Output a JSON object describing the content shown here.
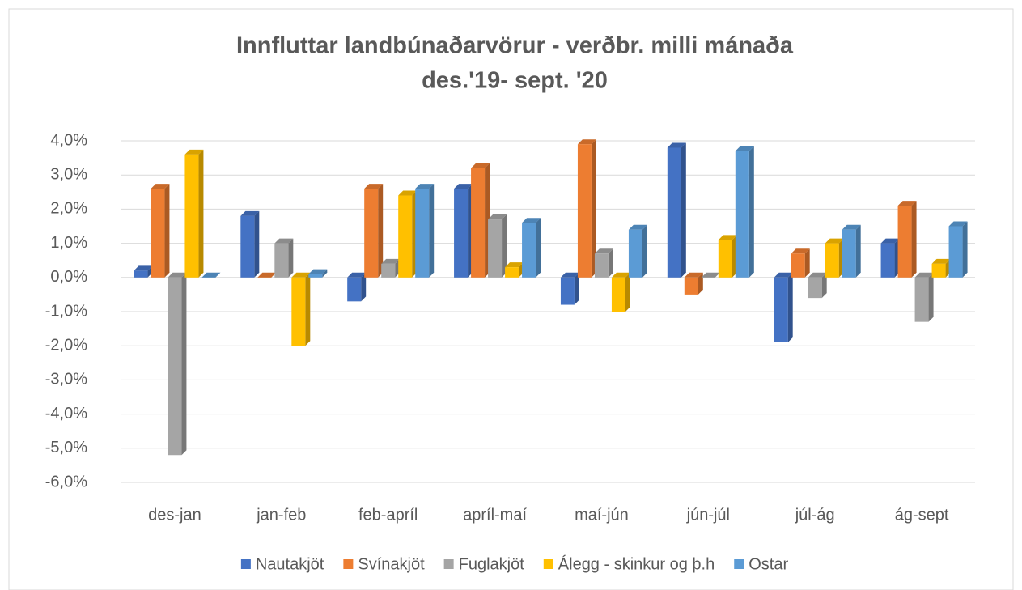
{
  "chart_data": {
    "type": "bar3d",
    "title": "Innfluttar landbúnaðarvörur - verðbr. milli mánaða",
    "subtitle": "des.'19- sept. '20",
    "categories": [
      "des-jan",
      "jan-feb",
      "feb-apríl",
      "apríl-maí",
      "maí-jún",
      "jún-júl",
      "júl-ág",
      "ág-sept"
    ],
    "series": [
      {
        "name": "Nautakjöt",
        "color": "#4472c4",
        "values": [
          0.2,
          1.8,
          -0.7,
          2.6,
          -0.8,
          3.8,
          -1.9,
          1.0
        ]
      },
      {
        "name": "Svínakjöt",
        "color": "#ed7d31",
        "values": [
          2.6,
          0.0,
          2.6,
          3.2,
          3.9,
          -0.5,
          0.7,
          2.1
        ]
      },
      {
        "name": "Fuglakjöt",
        "color": "#a5a5a5",
        "values": [
          -5.2,
          1.0,
          0.4,
          1.7,
          0.7,
          0.0,
          -0.6,
          -1.3
        ]
      },
      {
        "name": "Álegg - skinkur og þ.h",
        "color": "#ffc000",
        "values": [
          3.6,
          -2.0,
          2.4,
          0.3,
          -1.0,
          1.1,
          1.0,
          0.4
        ]
      },
      {
        "name": "Ostar",
        "color": "#5b9bd5",
        "values": [
          0.0,
          0.1,
          2.6,
          1.6,
          1.4,
          3.7,
          1.4,
          1.5
        ]
      }
    ],
    "ylim": [
      -6,
      4
    ],
    "yticks": [
      {
        "value": -6,
        "label": "-6,0%"
      },
      {
        "value": -5,
        "label": "-5,0%"
      },
      {
        "value": -4,
        "label": "-4,0%"
      },
      {
        "value": -3,
        "label": "-3,0%"
      },
      {
        "value": -2,
        "label": "-2,0%"
      },
      {
        "value": -1,
        "label": "-1,0%"
      },
      {
        "value": 0,
        "label": "0,0%"
      },
      {
        "value": 1,
        "label": "1,0%"
      },
      {
        "value": 2,
        "label": "2,0%"
      },
      {
        "value": 3,
        "label": "3,0%"
      },
      {
        "value": 4,
        "label": "4,0%"
      }
    ],
    "grid": true,
    "legend": "bottom"
  }
}
